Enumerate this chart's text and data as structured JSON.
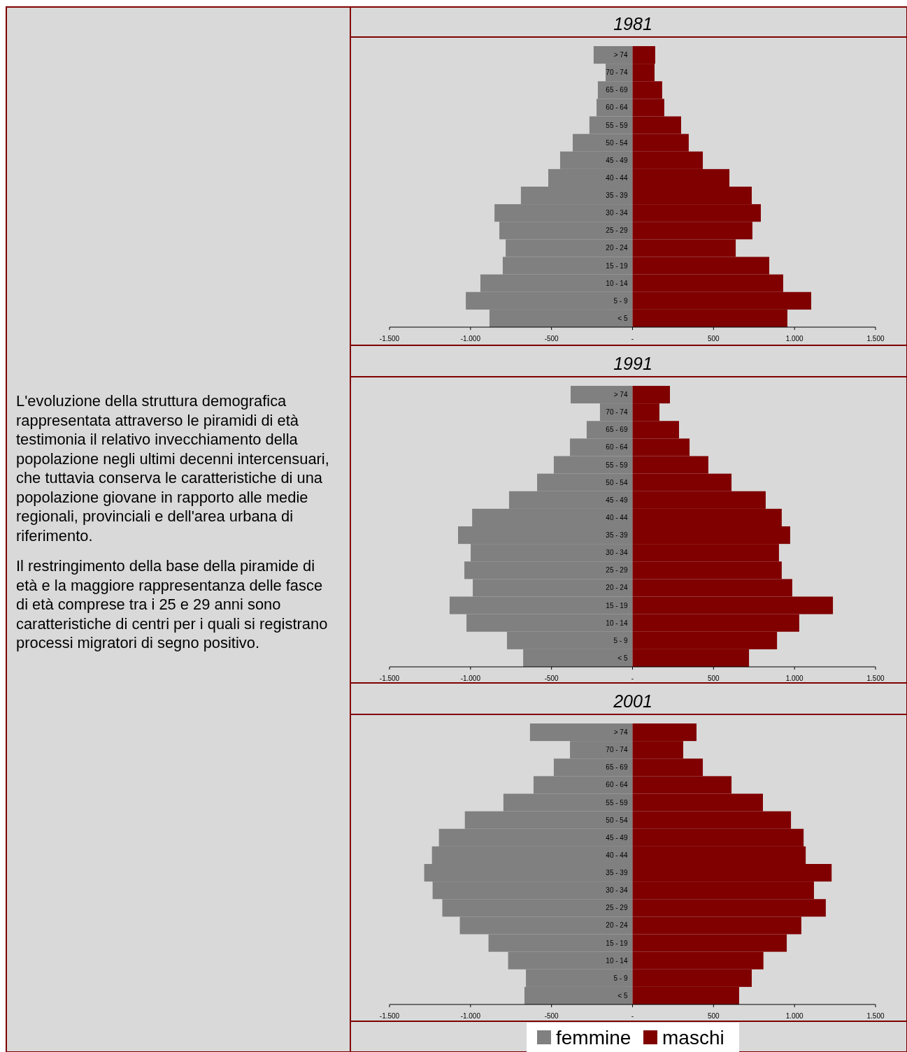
{
  "chart_data": [
    {
      "type": "other",
      "annotations": [
        "L'evoluzione della struttura demografica rappresentata attraverso le piramidi di età testimonia il relativo invecchiamento della popolazione negli ultimi decenni intercensuari, che tuttavia conserva le caratteristiche di una popolazione giovane in rapporto alle medie regionali, provinciali e dell'area urbana di riferimento.",
        "Il restringimento della base della piramide di età e la maggiore rappresentanza delle fasce di età comprese tra i 25 e 29 anni sono caratteristiche di centri per i quali si registrano processi migratori di segno positivo."
      ]
    },
    {
      "type": "bar",
      "title": "1981",
      "orientation": "horizontal",
      "stacked": true,
      "categories": [
        "> 74",
        "70 - 74",
        "65 - 69",
        "60 - 64",
        "55 - 59",
        "50 - 54",
        "45 - 49",
        "40 - 44",
        "35 - 39",
        "30 - 34",
        "25 - 29",
        "20 - 24",
        "15 - 19",
        "10 - 14",
        "5 -  9",
        "< 5"
      ],
      "series": [
        {
          "color": "#808080",
          "values": [
            -240,
            -166,
            -214,
            -222,
            -266,
            -369,
            -447,
            -520,
            -689,
            -852,
            -822,
            -783,
            -801,
            -939,
            -1029,
            -883
          ]
        },
        {
          "color": "#800000",
          "values": [
            140,
            136,
            183,
            196,
            300,
            347,
            434,
            598,
            736,
            792,
            740,
            637,
            844,
            930,
            1103,
            956
          ]
        }
      ],
      "xlim": [
        -1500,
        1500
      ],
      "xticks": [
        {
          "value": -1500,
          "label": "-1.500"
        },
        {
          "value": -1000,
          "label": "-1.000"
        },
        {
          "value": -500,
          "label": "-500"
        },
        {
          "value": 0,
          "label": "-"
        },
        {
          "value": 500,
          "label": "500"
        },
        {
          "value": 1000,
          "label": "1.000"
        },
        {
          "value": 1500,
          "label": "1.500"
        }
      ],
      "grid": false,
      "legend": false
    },
    {
      "type": "bar",
      "title": "1991",
      "orientation": "horizontal",
      "stacked": true,
      "categories": [
        "> 74",
        "70 - 74",
        "65 - 69",
        "60 - 64",
        "55 - 59",
        "50 - 54",
        "45 - 49",
        "40 - 44",
        "35 - 39",
        "30 - 34",
        "25 - 29",
        "20 - 24",
        "15 - 19",
        "10 - 14",
        "5 -  9",
        "< 5"
      ],
      "series": [
        {
          "color": "#808080",
          "values": [
            -382,
            -201,
            -283,
            -386,
            -486,
            -589,
            -762,
            -990,
            -1077,
            -999,
            -1038,
            -986,
            -1129,
            -1025,
            -775,
            -675
          ]
        },
        {
          "color": "#800000",
          "values": [
            231,
            166,
            287,
            352,
            468,
            611,
            822,
            921,
            973,
            904,
            921,
            986,
            1237,
            1029,
            892,
            719
          ]
        }
      ],
      "xlim": [
        -1500,
        1500
      ],
      "xticks": [
        {
          "value": -1500,
          "label": "-1.500"
        },
        {
          "value": -1000,
          "label": "-1.000"
        },
        {
          "value": -500,
          "label": "-500"
        },
        {
          "value": 0,
          "label": "-"
        },
        {
          "value": 500,
          "label": "500"
        },
        {
          "value": 1000,
          "label": "1.000"
        },
        {
          "value": 1500,
          "label": "1.500"
        }
      ],
      "grid": false,
      "legend": false
    },
    {
      "type": "bar",
      "title": "2001",
      "orientation": "horizontal",
      "stacked": true,
      "categories": [
        "> 74",
        "70 - 74",
        "65 - 69",
        "60 - 64",
        "55 - 59",
        "50 - 54",
        "45 - 49",
        "40 - 44",
        "35 - 39",
        "30 - 34",
        "25 - 29",
        "20 - 24",
        "15 - 19",
        "10 - 14",
        "5 -  9",
        "< 5"
      ],
      "series": [
        {
          "name": "femmine",
          "color": "#808080",
          "values": [
            -633,
            -386,
            -486,
            -611,
            -797,
            -1035,
            -1195,
            -1238,
            -1286,
            -1234,
            -1174,
            -1066,
            -889,
            -768,
            -658,
            -667
          ]
        },
        {
          "name": "maschi",
          "color": "#800000",
          "values": [
            395,
            313,
            434,
            611,
            805,
            978,
            1056,
            1069,
            1229,
            1120,
            1193,
            1042,
            952,
            808,
            736,
            658
          ]
        }
      ],
      "xlim": [
        -1500,
        1500
      ],
      "xticks": [
        {
          "value": -1500,
          "label": "-1.500"
        },
        {
          "value": -1000,
          "label": "-1.000"
        },
        {
          "value": -500,
          "label": "-500"
        },
        {
          "value": 0,
          "label": "-"
        },
        {
          "value": 500,
          "label": "500"
        },
        {
          "value": 1000,
          "label": "1.000"
        },
        {
          "value": 1500,
          "label": "1.500"
        }
      ],
      "grid": false,
      "legend": "bottom"
    }
  ]
}
